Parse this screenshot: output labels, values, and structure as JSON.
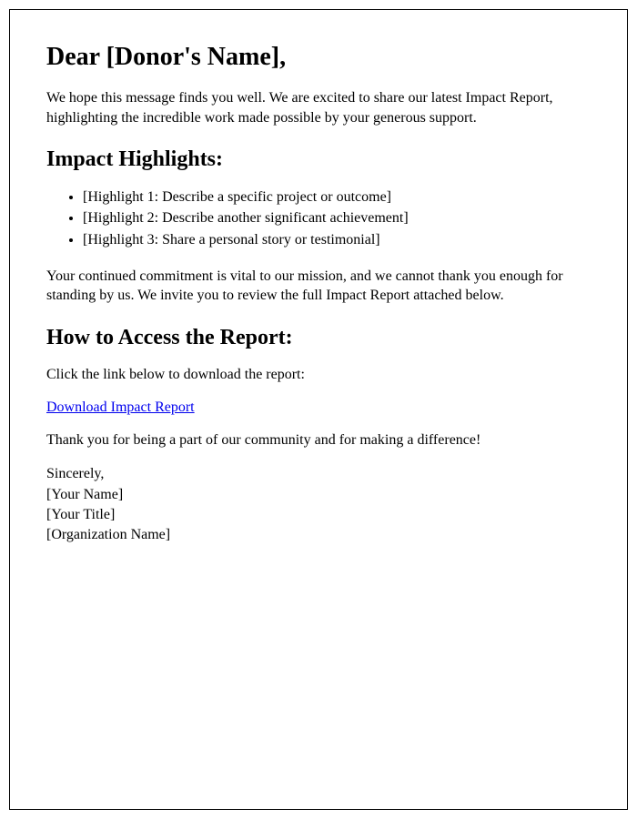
{
  "greeting": "Dear [Donor's Name],",
  "intro": "We hope this message finds you well. We are excited to share our latest Impact Report, highlighting the incredible work made possible by your generous support.",
  "highlights_heading": "Impact Highlights:",
  "highlights": [
    "[Highlight 1: Describe a specific project or outcome]",
    "[Highlight 2: Describe another significant achievement]",
    "[Highlight 3: Share a personal story or testimonial]"
  ],
  "commitment": "Your continued commitment is vital to our mission, and we cannot thank you enough for standing by us. We invite you to review the full Impact Report attached below.",
  "access_heading": "How to Access the Report:",
  "access_text": "Click the link below to download the report:",
  "link_text": "Download Impact Report",
  "link_href": "#",
  "thankyou": "Thank you for being a part of our community and for making a difference!",
  "signoff": {
    "closing": "Sincerely,",
    "name": "[Your Name]",
    "title": "[Your Title]",
    "org": "[Organization Name]"
  }
}
